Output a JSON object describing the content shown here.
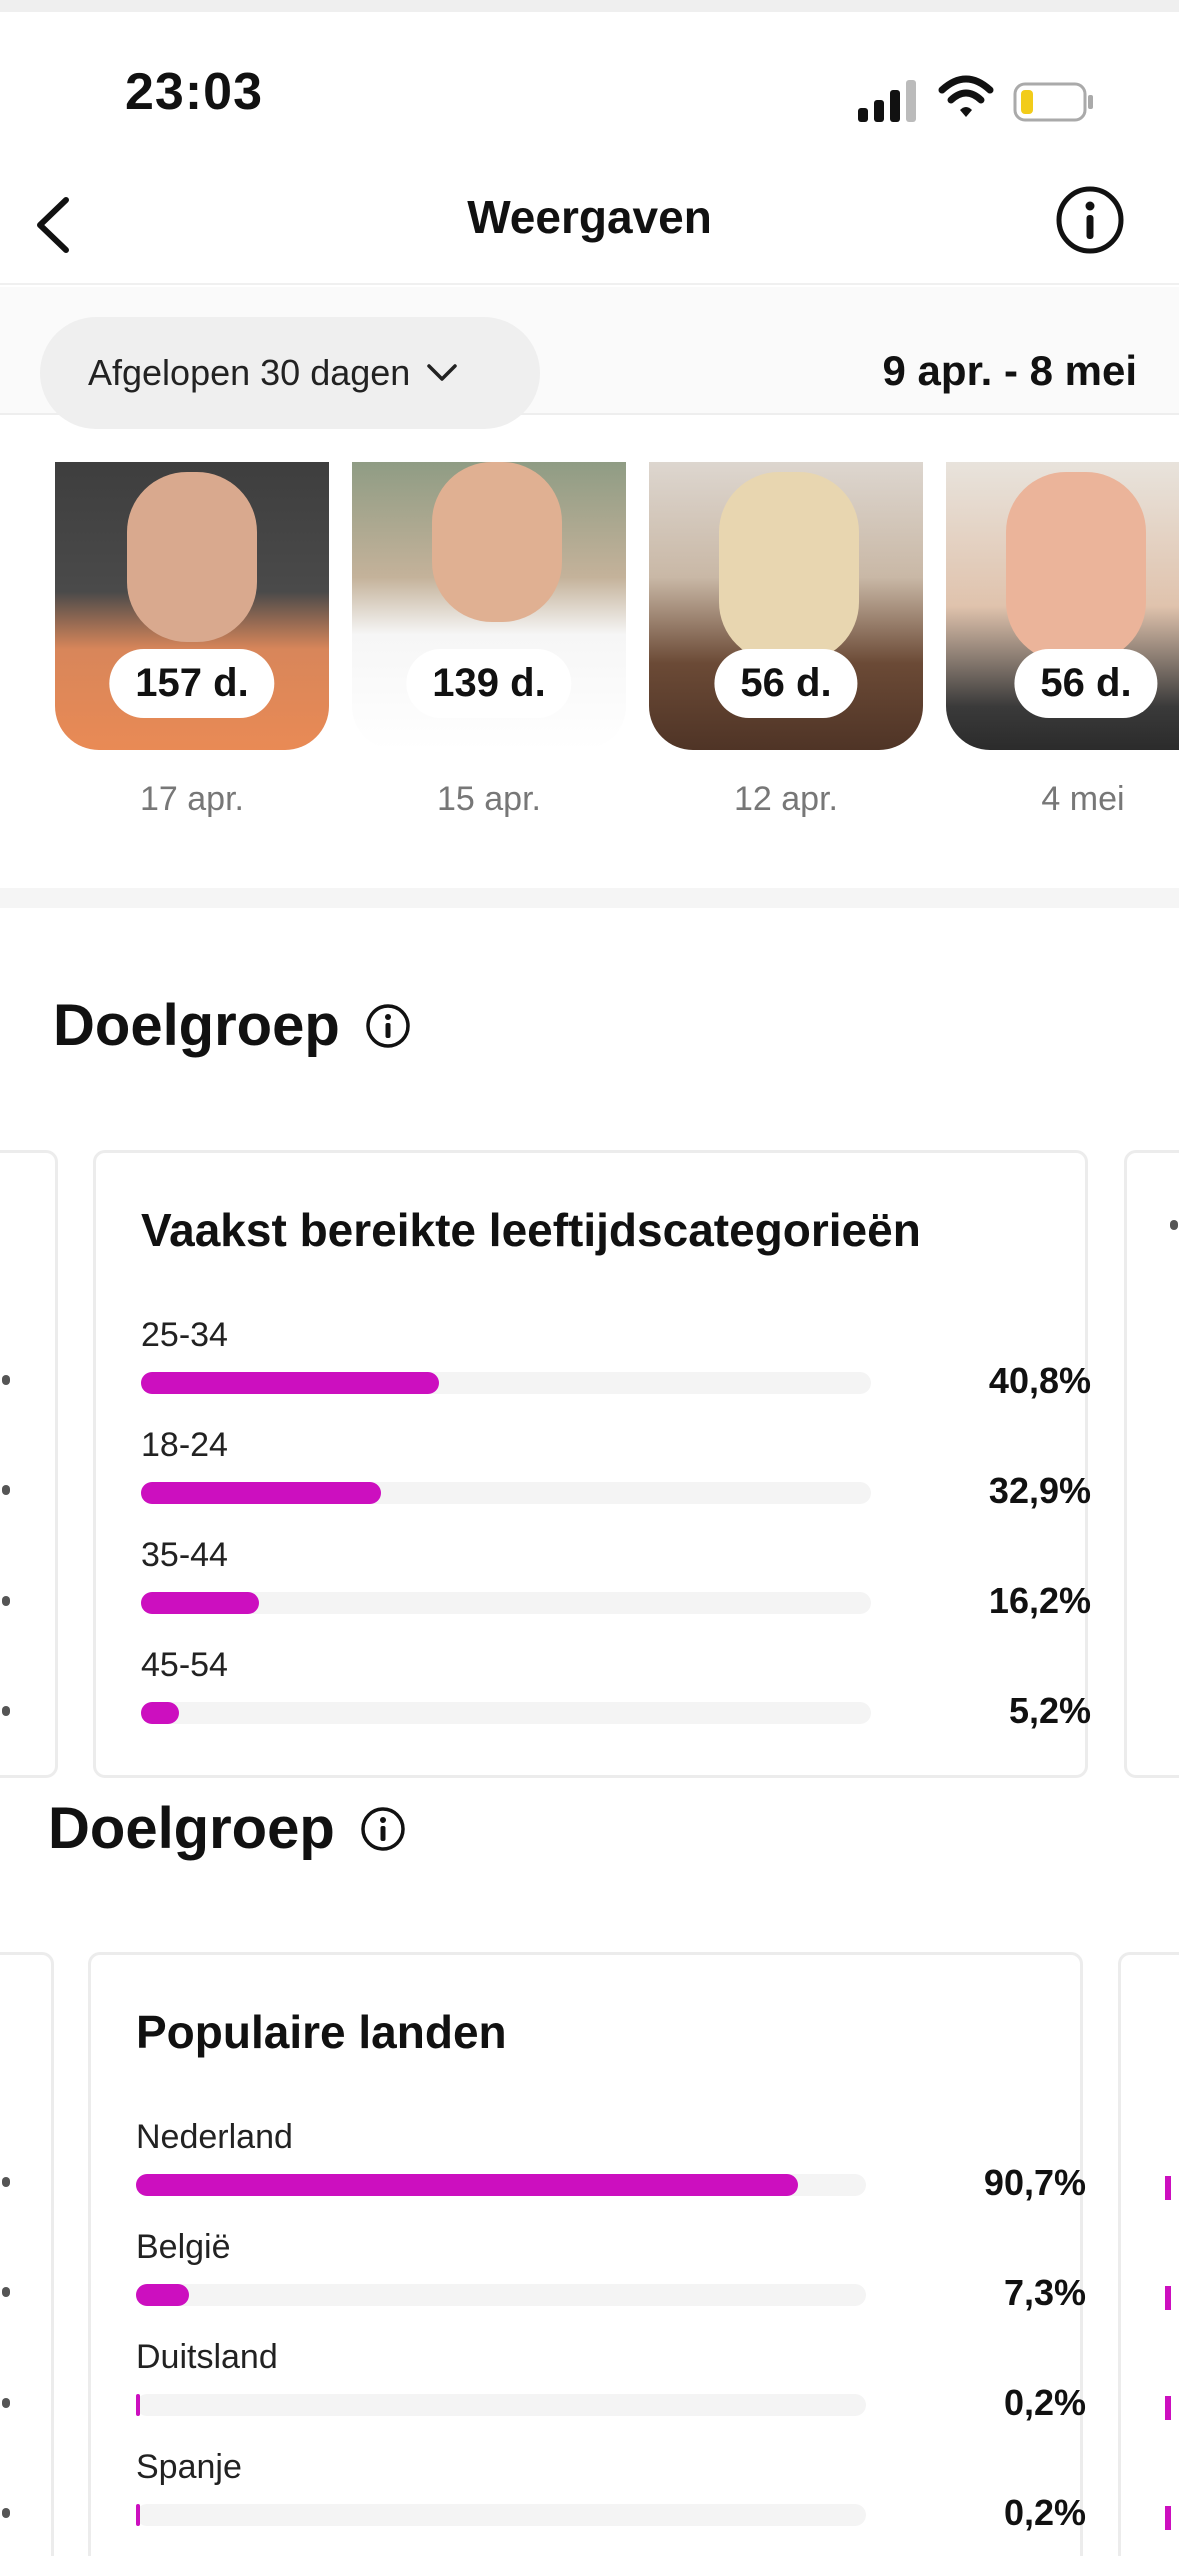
{
  "status": {
    "time": "23:03"
  },
  "nav": {
    "title": "Weergaven"
  },
  "filter": {
    "period": "Afgelopen 30 dagen",
    "range": "9 apr. - 8 mei"
  },
  "posts": [
    {
      "badge": "157 d.",
      "date": "17 apr."
    },
    {
      "badge": "139 d.",
      "date": "15 apr."
    },
    {
      "badge": "56 d.",
      "date": "12 apr."
    },
    {
      "badge": "56 d.",
      "date": "4 mei"
    }
  ],
  "audience1": {
    "section_title": "Doelgroep",
    "card_title": "Vaakst bereikte leeftijdscategorieën",
    "rows": [
      {
        "label": "25-34",
        "value": "40,8%",
        "fraction": 0.408
      },
      {
        "label": "18-24",
        "value": "32,9%",
        "fraction": 0.329
      },
      {
        "label": "35-44",
        "value": "16,2%",
        "fraction": 0.162
      },
      {
        "label": "45-54",
        "value": "5,2%",
        "fraction": 0.052
      }
    ]
  },
  "audience2": {
    "section_title": "Doelgroep",
    "card_title": "Populaire landen",
    "rows": [
      {
        "label": "Nederland",
        "value": "90,7%",
        "fraction": 0.907
      },
      {
        "label": "België",
        "value": "7,3%",
        "fraction": 0.073
      },
      {
        "label": "Duitsland",
        "value": "0,2%",
        "fraction": 0.002
      },
      {
        "label": "Spanje",
        "value": "0,2%",
        "fraction": 0.002
      }
    ]
  },
  "colors": {
    "accent": "#cc0fbf",
    "track": "#f4f4f4"
  },
  "icons": [
    "signal-icon",
    "wifi-icon",
    "battery-icon",
    "back-icon",
    "info-icon",
    "chevron-down-icon"
  ]
}
